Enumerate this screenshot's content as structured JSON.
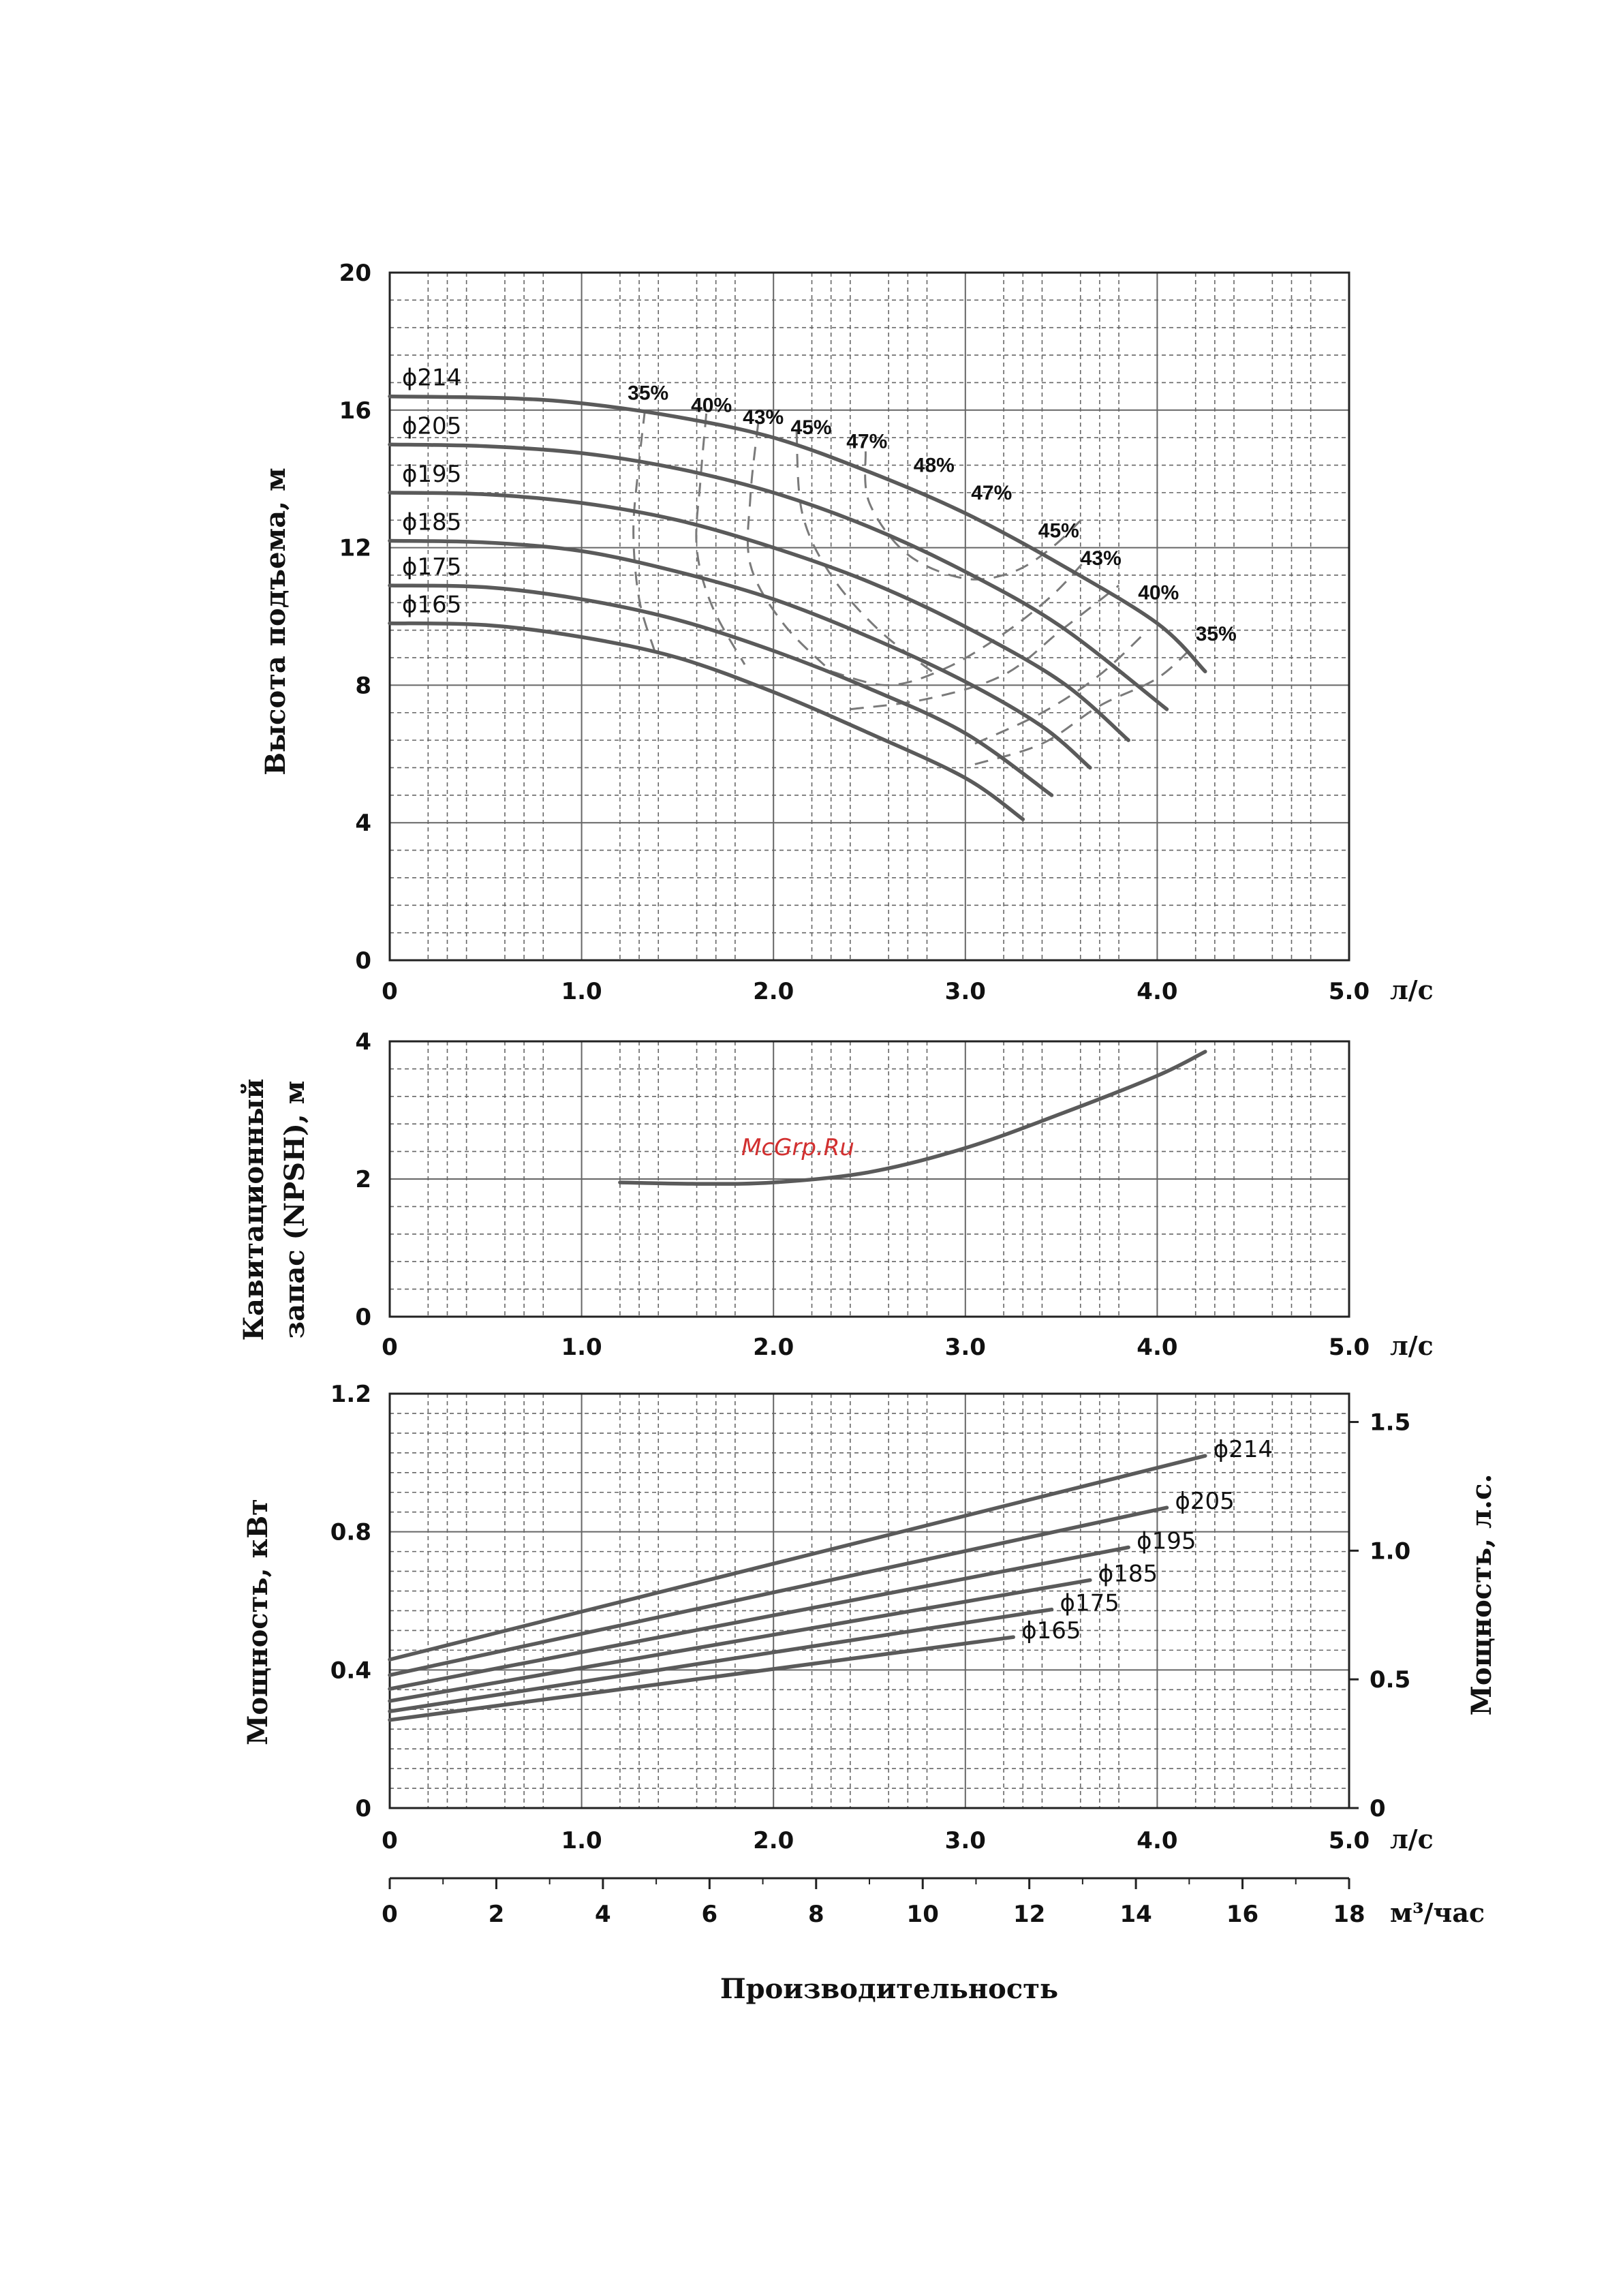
{
  "chart_data": [
    {
      "type": "line",
      "name": "head",
      "ylabel": "Высота подъема, м",
      "xunit": "л/с",
      "xlim": [
        0,
        5
      ],
      "ylim": [
        0,
        20
      ],
      "xticks": [
        "0",
        "1.0",
        "2.0",
        "3.0",
        "4.0",
        "5.0"
      ],
      "yticks": [
        "0",
        "4",
        "8",
        "12",
        "16",
        "20"
      ],
      "grid": true,
      "series": [
        {
          "name": "ϕ214",
          "points": [
            [
              0,
              16.4
            ],
            [
              0.6,
              16.35
            ],
            [
              1.0,
              16.2
            ],
            [
              1.5,
              15.8
            ],
            [
              2.0,
              15.2
            ],
            [
              2.5,
              14.2
            ],
            [
              3.0,
              13.0
            ],
            [
              3.5,
              11.5
            ],
            [
              4.0,
              9.8
            ],
            [
              4.25,
              8.4
            ]
          ]
        },
        {
          "name": "ϕ205",
          "points": [
            [
              0,
              15.0
            ],
            [
              0.5,
              14.95
            ],
            [
              1.0,
              14.75
            ],
            [
              1.5,
              14.3
            ],
            [
              2.0,
              13.6
            ],
            [
              2.5,
              12.6
            ],
            [
              3.0,
              11.3
            ],
            [
              3.5,
              9.7
            ],
            [
              4.05,
              7.3
            ]
          ]
        },
        {
          "name": "ϕ195",
          "points": [
            [
              0,
              13.6
            ],
            [
              0.5,
              13.55
            ],
            [
              1.0,
              13.3
            ],
            [
              1.5,
              12.8
            ],
            [
              2.0,
              12.0
            ],
            [
              2.5,
              11.0
            ],
            [
              3.0,
              9.7
            ],
            [
              3.5,
              8.1
            ],
            [
              3.85,
              6.4
            ]
          ]
        },
        {
          "name": "ϕ185",
          "points": [
            [
              0,
              12.2
            ],
            [
              0.5,
              12.15
            ],
            [
              1.0,
              11.9
            ],
            [
              1.5,
              11.3
            ],
            [
              2.0,
              10.5
            ],
            [
              2.5,
              9.4
            ],
            [
              3.0,
              8.1
            ],
            [
              3.4,
              6.8
            ],
            [
              3.65,
              5.6
            ]
          ]
        },
        {
          "name": "ϕ175",
          "points": [
            [
              0,
              10.9
            ],
            [
              0.5,
              10.85
            ],
            [
              1.0,
              10.5
            ],
            [
              1.5,
              9.9
            ],
            [
              2.0,
              9.0
            ],
            [
              2.5,
              7.9
            ],
            [
              3.0,
              6.6
            ],
            [
              3.45,
              4.8
            ]
          ]
        },
        {
          "name": "ϕ165",
          "points": [
            [
              0,
              9.8
            ],
            [
              0.5,
              9.75
            ],
            [
              1.0,
              9.4
            ],
            [
              1.5,
              8.8
            ],
            [
              2.0,
              7.8
            ],
            [
              2.5,
              6.6
            ],
            [
              3.0,
              5.3
            ],
            [
              3.3,
              4.1
            ]
          ]
        }
      ],
      "efficiency_lines": [
        {
          "label": "35%",
          "points": [
            [
              1.33,
              16.0
            ],
            [
              1.3,
              14.5
            ],
            [
              1.27,
              12.5
            ],
            [
              1.3,
              10.5
            ],
            [
              1.38,
              9.0
            ]
          ]
        },
        {
          "label": "40%",
          "points": [
            [
              1.65,
              15.9
            ],
            [
              1.62,
              14.0
            ],
            [
              1.6,
              12.0
            ],
            [
              1.68,
              10.3
            ],
            [
              1.85,
              8.6
            ]
          ]
        },
        {
          "label": "43%",
          "points": [
            [
              1.92,
              15.6
            ],
            [
              1.88,
              13.5
            ],
            [
              1.88,
              11.5
            ],
            [
              2.05,
              9.8
            ],
            [
              2.3,
              8.4
            ]
          ]
        },
        {
          "label": "45%",
          "points": [
            [
              2.12,
              15.4
            ],
            [
              2.15,
              13.0
            ],
            [
              2.3,
              11.2
            ],
            [
              2.55,
              9.6
            ],
            [
              2.85,
              8.3
            ]
          ]
        },
        {
          "label": "47%",
          "points": [
            [
              2.48,
              14.8
            ],
            [
              2.5,
              13.3
            ],
            [
              2.7,
              11.8
            ],
            [
              3.0,
              11.1
            ],
            [
              3.25,
              11.3
            ],
            [
              3.45,
              12.0
            ],
            [
              3.62,
              12.9
            ]
          ]
        },
        {
          "label": "47%",
          "points": [
            [
              2.3,
              8.4
            ],
            [
              2.6,
              8.0
            ],
            [
              2.9,
              8.5
            ],
            [
              3.2,
              9.5
            ],
            [
              3.45,
              10.6
            ],
            [
              3.62,
              11.6
            ]
          ]
        },
        {
          "label": "45%",
          "points": [
            [
              2.4,
              7.3
            ],
            [
              2.8,
              7.6
            ],
            [
              3.2,
              8.3
            ],
            [
              3.5,
              9.6
            ],
            [
              3.8,
              10.9
            ]
          ]
        },
        {
          "label": "43%",
          "points": [
            [
              3.05,
              6.3
            ],
            [
              3.4,
              7.2
            ],
            [
              3.7,
              8.3
            ],
            [
              3.95,
              9.6
            ]
          ]
        },
        {
          "label": "40%",
          "points": [
            [
              3.05,
              5.7
            ],
            [
              3.4,
              6.3
            ],
            [
              3.7,
              7.4
            ],
            [
              4.0,
              8.2
            ],
            [
              4.2,
              9.2
            ]
          ]
        }
      ],
      "efficiency_label_positions": [
        {
          "label": "35%",
          "x": 1.24,
          "y": 16.3
        },
        {
          "label": "40%",
          "x": 1.57,
          "y": 15.95
        },
        {
          "label": "43%",
          "x": 1.84,
          "y": 15.6
        },
        {
          "label": "45%",
          "x": 2.09,
          "y": 15.3
        },
        {
          "label": "47%",
          "x": 2.38,
          "y": 14.9
        },
        {
          "label": "48%",
          "x": 2.73,
          "y": 14.2
        },
        {
          "label": "47%",
          "x": 3.03,
          "y": 13.4
        },
        {
          "label": "45%",
          "x": 3.38,
          "y": 12.3
        },
        {
          "label": "43%",
          "x": 3.6,
          "y": 11.5
        },
        {
          "label": "40%",
          "x": 3.9,
          "y": 10.5
        },
        {
          "label": "35%",
          "x": 4.2,
          "y": 9.3
        }
      ]
    },
    {
      "type": "line",
      "name": "npsh",
      "ylabel_line1": "Кавитационный",
      "ylabel_line2": "запас (NPSH), м",
      "xunit": "л/с",
      "xlim": [
        0,
        5
      ],
      "ylim": [
        0,
        4
      ],
      "xticks": [
        "0",
        "1.0",
        "2.0",
        "3.0",
        "4.0",
        "5.0"
      ],
      "yticks": [
        "0",
        "2",
        "4"
      ],
      "grid": true,
      "series": [
        {
          "name": "",
          "points": [
            [
              1.2,
              1.95
            ],
            [
              1.6,
              1.93
            ],
            [
              2.0,
              1.95
            ],
            [
              2.5,
              2.1
            ],
            [
              3.0,
              2.45
            ],
            [
              3.5,
              2.95
            ],
            [
              4.0,
              3.5
            ],
            [
              4.25,
              3.85
            ]
          ]
        }
      ]
    },
    {
      "type": "line",
      "name": "power",
      "ylabel": "Мощность, кВт",
      "ylabel_right": "Мощность, л.с.",
      "xunit": "л/с",
      "xlim": [
        0,
        5
      ],
      "ylim": [
        0,
        1.2
      ],
      "xticks": [
        "0",
        "1.0",
        "2.0",
        "3.0",
        "4.0",
        "5.0"
      ],
      "yticks": [
        "0",
        "0.4",
        "0.8",
        "1.2"
      ],
      "yticks_right": [
        "0",
        "0.5",
        "1.0",
        "1.5"
      ],
      "y_right_max": 1.61,
      "grid": true,
      "series": [
        {
          "name": "ϕ214",
          "points": [
            [
              0,
              0.43
            ],
            [
              4.25,
              1.02
            ]
          ]
        },
        {
          "name": "ϕ205",
          "points": [
            [
              0,
              0.385
            ],
            [
              4.05,
              0.87
            ]
          ]
        },
        {
          "name": "ϕ195",
          "points": [
            [
              0,
              0.345
            ],
            [
              3.85,
              0.755
            ]
          ]
        },
        {
          "name": "ϕ185",
          "points": [
            [
              0,
              0.31
            ],
            [
              3.65,
              0.66
            ]
          ]
        },
        {
          "name": "ϕ175",
          "points": [
            [
              0,
              0.28
            ],
            [
              3.45,
              0.575
            ]
          ]
        },
        {
          "name": "ϕ165",
          "points": [
            [
              0,
              0.255
            ],
            [
              3.25,
              0.495
            ]
          ]
        }
      ]
    }
  ],
  "secondary_axis": {
    "unit": "м³/час",
    "ticks": [
      "0",
      "2",
      "4",
      "6",
      "8",
      "10",
      "12",
      "14",
      "16",
      "18"
    ],
    "max": 18
  },
  "xlabel": "Производительность",
  "watermark": "McGrp.Ru",
  "colors": {
    "curve": "#5a5a5a",
    "grid": "#666666",
    "watermark": "#d23030"
  }
}
